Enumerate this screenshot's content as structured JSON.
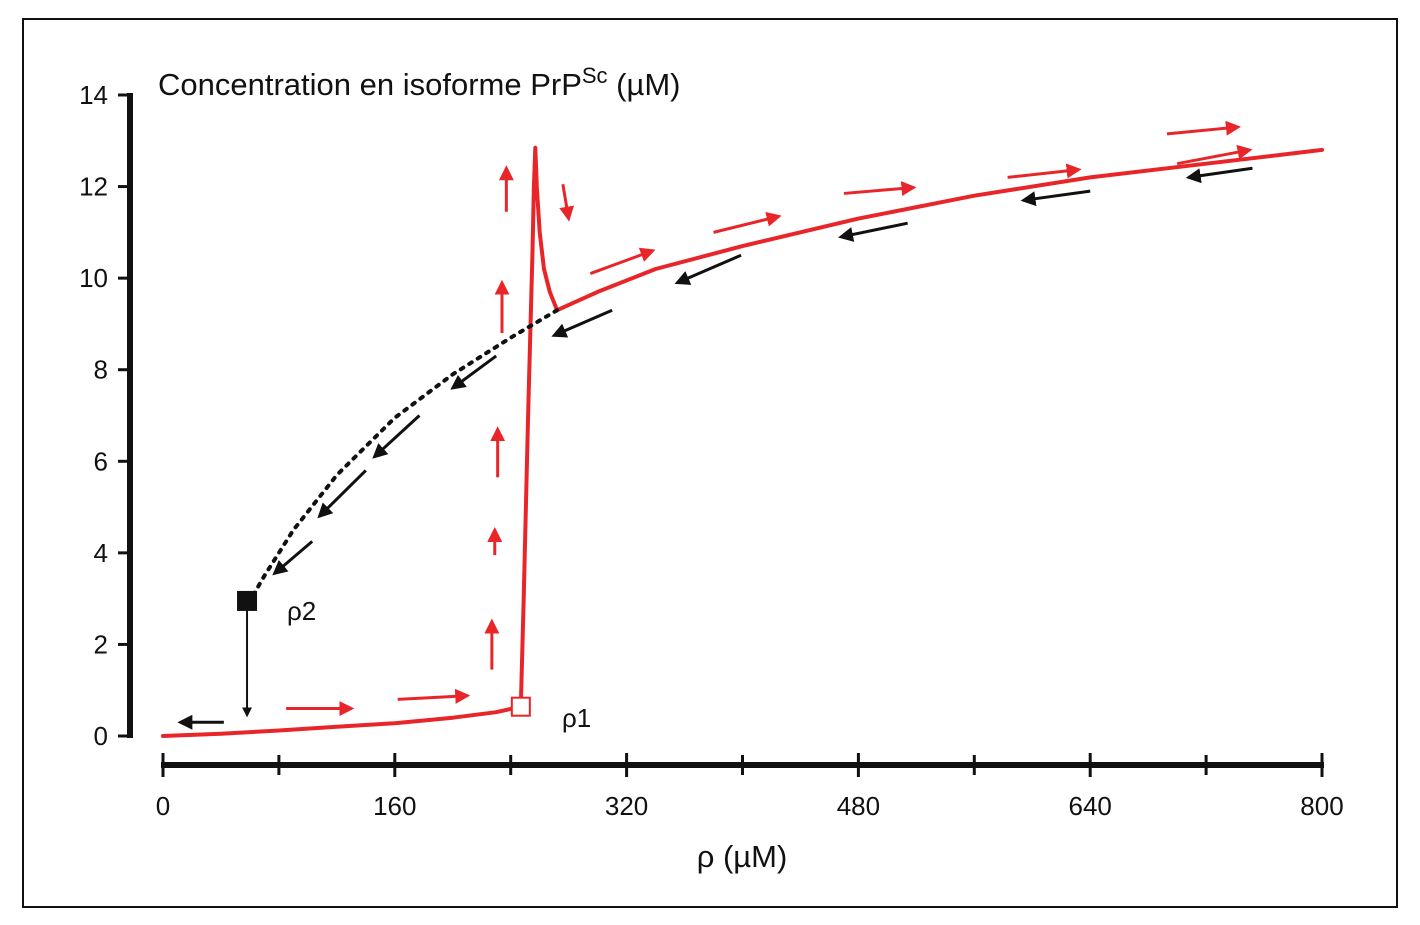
{
  "chart_data": {
    "type": "line",
    "title": "",
    "y_title": {
      "main": "Concentration en isoforme PrP",
      "superscript": "Sc",
      "unit": " (µM)"
    },
    "xlabel": "ρ (µM)",
    "xlim": [
      0,
      800
    ],
    "ylim": [
      0,
      14
    ],
    "x_ticks": [
      0,
      160,
      320,
      480,
      640,
      800
    ],
    "x_minor_ticks": [
      80,
      240,
      400,
      560,
      720
    ],
    "y_ticks": [
      0,
      2,
      4,
      6,
      8,
      10,
      12,
      14
    ],
    "grid": false,
    "legend": "none",
    "colors": {
      "stable_branch": "#e8262a",
      "unstable_branch": "#111111",
      "axes": "#111111"
    },
    "series": [
      {
        "role": "lower_stable_branch",
        "style": "solid",
        "color": "#e8262a",
        "points": [
          [
            0,
            0
          ],
          [
            40,
            0.05
          ],
          [
            80,
            0.12
          ],
          [
            120,
            0.2
          ],
          [
            160,
            0.28
          ],
          [
            200,
            0.4
          ],
          [
            230,
            0.52
          ],
          [
            247,
            0.64
          ]
        ]
      },
      {
        "role": "jump_up",
        "style": "solid",
        "color": "#e8262a",
        "points": [
          [
            247,
            0.64
          ],
          [
            249,
            3.0
          ],
          [
            252,
            7.0
          ],
          [
            255,
            10.5
          ],
          [
            256,
            12.0
          ],
          [
            257,
            12.85
          ],
          [
            258,
            12.0
          ],
          [
            260,
            11.0
          ],
          [
            263,
            10.2
          ],
          [
            267,
            9.7
          ],
          [
            272,
            9.3
          ]
        ]
      },
      {
        "role": "upper_stable_branch",
        "style": "solid",
        "color": "#e8262a",
        "points": [
          [
            272,
            9.3
          ],
          [
            300,
            9.7
          ],
          [
            340,
            10.2
          ],
          [
            400,
            10.7
          ],
          [
            480,
            11.3
          ],
          [
            560,
            11.8
          ],
          [
            640,
            12.2
          ],
          [
            720,
            12.5
          ],
          [
            800,
            12.8
          ]
        ]
      },
      {
        "role": "unstable_return_path",
        "style": "dotted",
        "color": "#111111",
        "points": [
          [
            272,
            9.3
          ],
          [
            240,
            8.7
          ],
          [
            200,
            7.9
          ],
          [
            160,
            6.95
          ],
          [
            120,
            5.7
          ],
          [
            90,
            4.5
          ],
          [
            70,
            3.5
          ],
          [
            60,
            2.95
          ]
        ]
      }
    ],
    "markers": [
      {
        "label": "ρ2",
        "x": 58,
        "y": 2.95,
        "shape": "filled-square",
        "color": "#111111"
      },
      {
        "label": "ρ1",
        "x": 247,
        "y": 0.64,
        "shape": "open-square",
        "color": "#e8262a"
      }
    ],
    "drop_line": {
      "x": 58,
      "from_y": 2.95,
      "to_y": 0.45,
      "color": "#111111"
    },
    "annotations": {
      "red_arrows": [
        {
          "x1": 85,
          "y1": 0.6,
          "x2": 130,
          "y2": 0.6
        },
        {
          "x1": 162,
          "y1": 0.8,
          "x2": 210,
          "y2": 0.88
        },
        {
          "x1": 227,
          "y1": 1.45,
          "x2": 227,
          "y2": 2.5
        },
        {
          "x1": 229,
          "y1": 3.95,
          "x2": 229,
          "y2": 4.5
        },
        {
          "x1": 231,
          "y1": 5.65,
          "x2": 231,
          "y2": 6.7
        },
        {
          "x1": 234,
          "y1": 8.8,
          "x2": 234,
          "y2": 9.9
        },
        {
          "x1": 237,
          "y1": 11.45,
          "x2": 237,
          "y2": 12.4
        },
        {
          "x1": 276,
          "y1": 12.05,
          "x2": 280,
          "y2": 11.3
        },
        {
          "x1": 295,
          "y1": 10.1,
          "x2": 338,
          "y2": 10.6
        },
        {
          "x1": 380,
          "y1": 11.0,
          "x2": 425,
          "y2": 11.35
        },
        {
          "x1": 470,
          "y1": 11.85,
          "x2": 518,
          "y2": 11.98
        },
        {
          "x1": 583,
          "y1": 12.2,
          "x2": 632,
          "y2": 12.37
        },
        {
          "x1": 700,
          "y1": 12.5,
          "x2": 750,
          "y2": 12.8
        },
        {
          "x1": 693,
          "y1": 13.15,
          "x2": 742,
          "y2": 13.3
        }
      ],
      "black_arrows": [
        {
          "x1": 752,
          "y1": 12.4,
          "x2": 708,
          "y2": 12.2
        },
        {
          "x1": 640,
          "y1": 11.9,
          "x2": 594,
          "y2": 11.7
        },
        {
          "x1": 514,
          "y1": 11.2,
          "x2": 468,
          "y2": 10.9
        },
        {
          "x1": 399,
          "y1": 10.5,
          "x2": 355,
          "y2": 9.9
        },
        {
          "x1": 310,
          "y1": 9.3,
          "x2": 270,
          "y2": 8.75
        },
        {
          "x1": 230,
          "y1": 8.3,
          "x2": 200,
          "y2": 7.6
        },
        {
          "x1": 177,
          "y1": 7.0,
          "x2": 146,
          "y2": 6.1
        },
        {
          "x1": 140,
          "y1": 5.8,
          "x2": 108,
          "y2": 4.8
        },
        {
          "x1": 103,
          "y1": 4.25,
          "x2": 77,
          "y2": 3.55
        },
        {
          "x1": 42,
          "y1": 0.3,
          "x2": 12,
          "y2": 0.3
        }
      ]
    }
  },
  "point_labels": {
    "rho1": "ρ1",
    "rho2": "ρ2"
  }
}
